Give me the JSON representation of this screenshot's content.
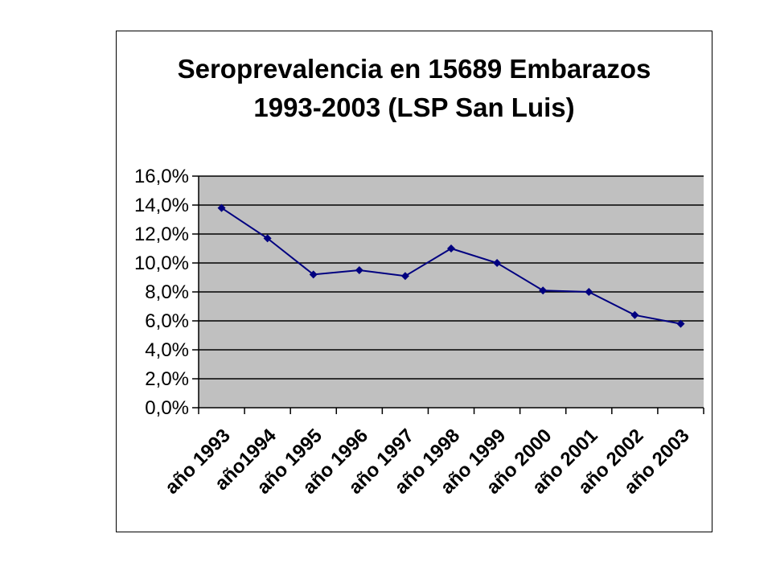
{
  "chart_data": {
    "type": "line",
    "title_lines": [
      "Seroprevalencia en 15689 Embarazos",
      "1993-2003 (LSP San Luis)"
    ],
    "xlabel": "",
    "ylabel": "",
    "categories": [
      "año 1993",
      "año1994",
      "año 1995",
      "año 1996",
      "año 1997",
      "año 1998",
      "año 1999",
      "año 2000",
      "año 2001",
      "año 2002",
      "año 2003"
    ],
    "series": [
      {
        "values": [
          13.8,
          11.7,
          9.2,
          9.5,
          9.1,
          11.0,
          10.0,
          8.1,
          8.0,
          6.4,
          5.8
        ]
      }
    ],
    "yticks": [
      "0,0%",
      "2,0%",
      "4,0%",
      "6,0%",
      "8,0%",
      "10,0%",
      "12,0%",
      "14,0%",
      "16,0%"
    ],
    "ylim": [
      0,
      16
    ],
    "grid": true,
    "legend": "none",
    "colors": {
      "plot_background": "#c0c0c0",
      "line": "#000080",
      "gridline": "#000000"
    }
  }
}
